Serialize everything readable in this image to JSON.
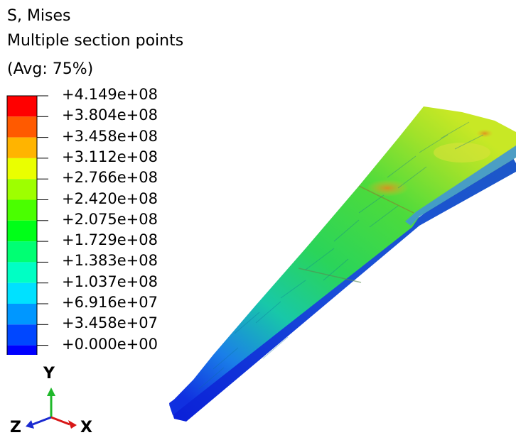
{
  "legend": {
    "title": "S, Mises",
    "subtitle": "Multiple section points",
    "averaging": "(Avg: 75%)",
    "ticks": [
      "+4.149e+08",
      "+3.804e+08",
      "+3.458e+08",
      "+3.112e+08",
      "+2.766e+08",
      "+2.420e+08",
      "+2.075e+08",
      "+1.729e+08",
      "+1.383e+08",
      "+1.037e+08",
      "+6.916e+07",
      "+3.458e+07",
      "+0.000e+00"
    ],
    "colors": [
      "#ff0000",
      "#ff5a00",
      "#ffb400",
      "#eaff00",
      "#9eff00",
      "#4aff00",
      "#00ff18",
      "#00ff73",
      "#00ffc4",
      "#00e1ff",
      "#0097ff",
      "#0047ff",
      "#0000ff"
    ]
  },
  "triad": {
    "y": "Y",
    "z": "Z",
    "x": "X"
  },
  "triad_colors": {
    "y": "#1fb82a",
    "z": "#1a2ad0",
    "x": "#d81818"
  }
}
